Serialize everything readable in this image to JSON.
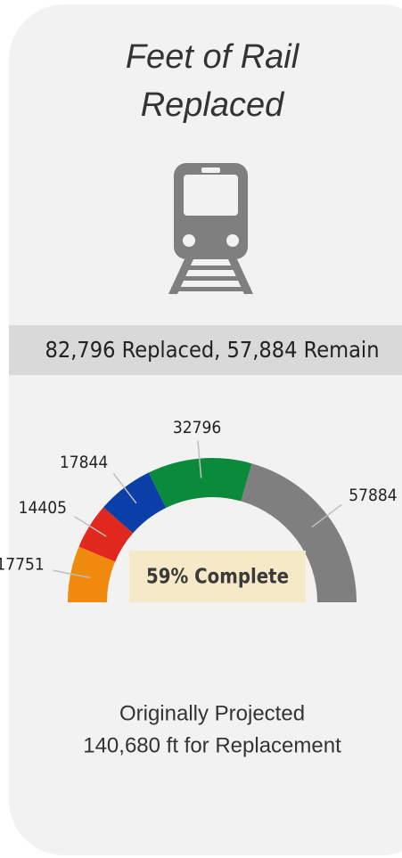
{
  "chart_data": {
    "type": "gauge",
    "title": [
      "Feet of Rail",
      "Replaced"
    ],
    "banner": "82,796 Replaced, 57,884 Remain",
    "center_label": "59% Complete",
    "footer": [
      "Originally Projected",
      "140,680 ft for Replacement"
    ],
    "values": [
      17751,
      14405,
      17844,
      32796,
      57884
    ],
    "colors": [
      "#ef8a0c",
      "#e0281e",
      "#0a3fa8",
      "#0b8a3c",
      "#7f7f7f"
    ]
  }
}
